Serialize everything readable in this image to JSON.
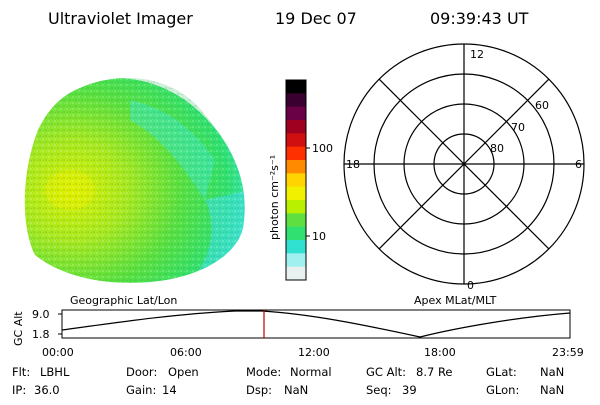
{
  "header": {
    "instrument": "Ultraviolet Imager",
    "date": "19 Dec 07",
    "time": "09:39:43 UT"
  },
  "colorbar": {
    "unit_label": "photon cm⁻²s⁻¹",
    "ticks": [
      "100",
      "10"
    ],
    "colors": [
      "#000000",
      "#3a0030",
      "#6a0046",
      "#a00020",
      "#d01010",
      "#ff3000",
      "#ff8a00",
      "#ffd400",
      "#f0f000",
      "#b8f000",
      "#60e040",
      "#30e070",
      "#30e0d0",
      "#a0f0f0",
      "#e8f0f0"
    ]
  },
  "polar": {
    "mlt_labels": {
      "top": "12",
      "left": "18",
      "right": "6",
      "bottom": "0"
    },
    "mlat_labels": [
      "60",
      "70",
      "80"
    ]
  },
  "panel_labels": {
    "left": "Geographic Lat/Lon",
    "right": "Apex MLat/MLT"
  },
  "altitude_plot": {
    "ylabel": "GC Alt",
    "y_ticks": [
      "9.0",
      "1.8"
    ],
    "x_ticks": [
      "00:00",
      "06:00",
      "12:00",
      "18:00",
      "23:59"
    ]
  },
  "info": {
    "flt": {
      "label": "Flt:",
      "value": "LBHL"
    },
    "ip": {
      "label": "IP:",
      "value": "36.0"
    },
    "door": {
      "label": "Door:",
      "value": "Open"
    },
    "gain": {
      "label": "Gain:",
      "value": "14"
    },
    "mode": {
      "label": "Mode:",
      "value": "Normal"
    },
    "dsp": {
      "label": "Dsp:",
      "value": "NaN"
    },
    "gcalt": {
      "label": "GC Alt:",
      "value": "8.7 Re"
    },
    "seq": {
      "label": "Seq:",
      "value": "39"
    },
    "glat": {
      "label": "GLat:",
      "value": "NaN"
    },
    "glon": {
      "label": "GLon:",
      "value": "NaN"
    }
  }
}
